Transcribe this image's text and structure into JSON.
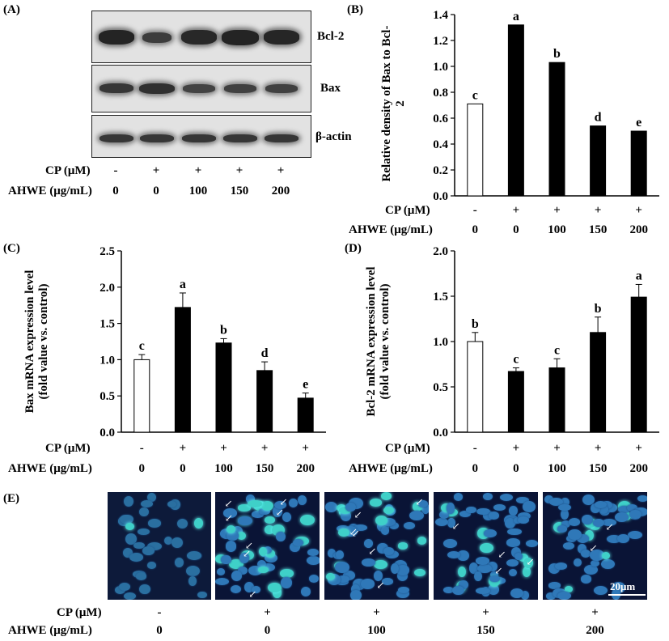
{
  "conditions": {
    "cp_label": "CP (μM)",
    "ahwe_label": "AHWE (μg/mL)",
    "cp": [
      "-",
      "+",
      "+",
      "+",
      "+"
    ],
    "ahwe": [
      "0",
      "0",
      "100",
      "150",
      "200"
    ]
  },
  "panel_a": {
    "label": "(A)",
    "blots": [
      "Bcl-2",
      "Bax",
      "β-actin"
    ]
  },
  "panel_e": {
    "label": "(E)",
    "scale_bar": "20μm",
    "icons": [
      "nucleus-icon",
      "arrow-icon"
    ]
  },
  "chart_data": [
    {
      "type": "bar",
      "panel": "(B)",
      "ylabel": "Relative density of Bax to Bcl-2",
      "ylim": [
        0,
        1.4
      ],
      "yticks": [
        "0.0",
        "0.2",
        "0.4",
        "0.6",
        "0.8",
        "1.0",
        "1.2",
        "1.4"
      ],
      "tick_step": 0.2,
      "categories": [
        "0",
        "0",
        "100",
        "150",
        "200"
      ],
      "values": [
        0.71,
        1.32,
        1.03,
        0.54,
        0.5
      ],
      "errors": [
        0,
        0,
        0,
        0,
        0
      ],
      "letters": [
        "c",
        "a",
        "b",
        "d",
        "e"
      ],
      "colors": [
        "#ffffff",
        "#000000",
        "#000000",
        "#000000",
        "#000000"
      ]
    },
    {
      "type": "bar",
      "panel": "(C)",
      "ylabel": "Bax mRNA expression level (fold value vs. control)",
      "ylim": [
        0,
        2.5
      ],
      "yticks": [
        "0.0",
        "0.5",
        "1.0",
        "1.5",
        "2.0",
        "2.5"
      ],
      "tick_step": 0.5,
      "categories": [
        "0",
        "0",
        "100",
        "150",
        "200"
      ],
      "values": [
        1.0,
        1.72,
        1.23,
        0.85,
        0.47
      ],
      "errors": [
        0.07,
        0.2,
        0.06,
        0.12,
        0.07
      ],
      "letters": [
        "c",
        "a",
        "b",
        "d",
        "e"
      ],
      "colors": [
        "#ffffff",
        "#000000",
        "#000000",
        "#000000",
        "#000000"
      ]
    },
    {
      "type": "bar",
      "panel": "(D)",
      "ylabel": "Bcl-2 mRNA expression level (fold value vs. control)",
      "ylim": [
        0,
        2.0
      ],
      "yticks": [
        "0.0",
        "0.5",
        "1.0",
        "1.5",
        "2.0"
      ],
      "tick_step": 0.5,
      "categories": [
        "0",
        "0",
        "100",
        "150",
        "200"
      ],
      "values": [
        1.0,
        0.67,
        0.71,
        1.1,
        1.49
      ],
      "errors": [
        0.1,
        0.04,
        0.1,
        0.17,
        0.14
      ],
      "letters": [
        "b",
        "c",
        "c",
        "b",
        "a"
      ],
      "colors": [
        "#ffffff",
        "#000000",
        "#000000",
        "#000000",
        "#000000"
      ]
    }
  ]
}
